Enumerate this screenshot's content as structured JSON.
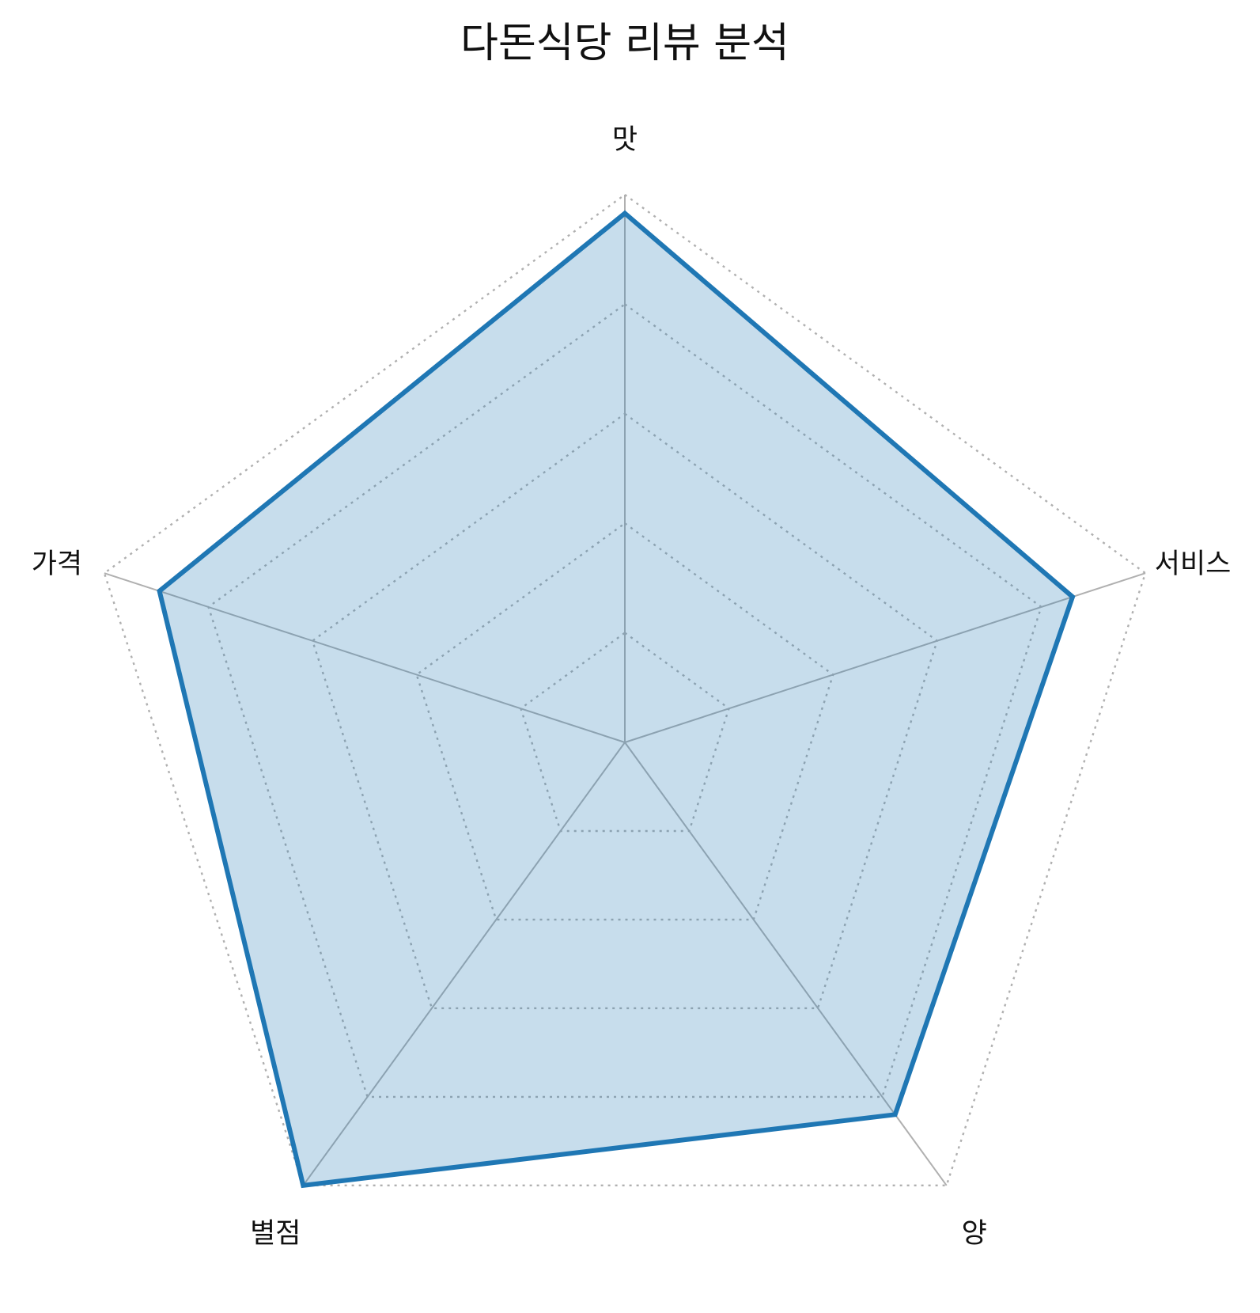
{
  "chart_data": {
    "type": "radar",
    "title": "다돈식당 리뷰 분석",
    "categories": [
      "맛",
      "서비스",
      "양",
      "별점",
      "가격"
    ],
    "series": [
      {
        "values": [
          4.83,
          4.3,
          4.2,
          5.0,
          4.47
        ]
      }
    ],
    "rlim": [
      0,
      5
    ],
    "r_ticks": [
      1,
      2,
      3,
      4,
      5
    ],
    "grid": true,
    "colors": {
      "series": "#1f77b4",
      "grid": "#b0b0b0",
      "text": "#111111"
    }
  }
}
